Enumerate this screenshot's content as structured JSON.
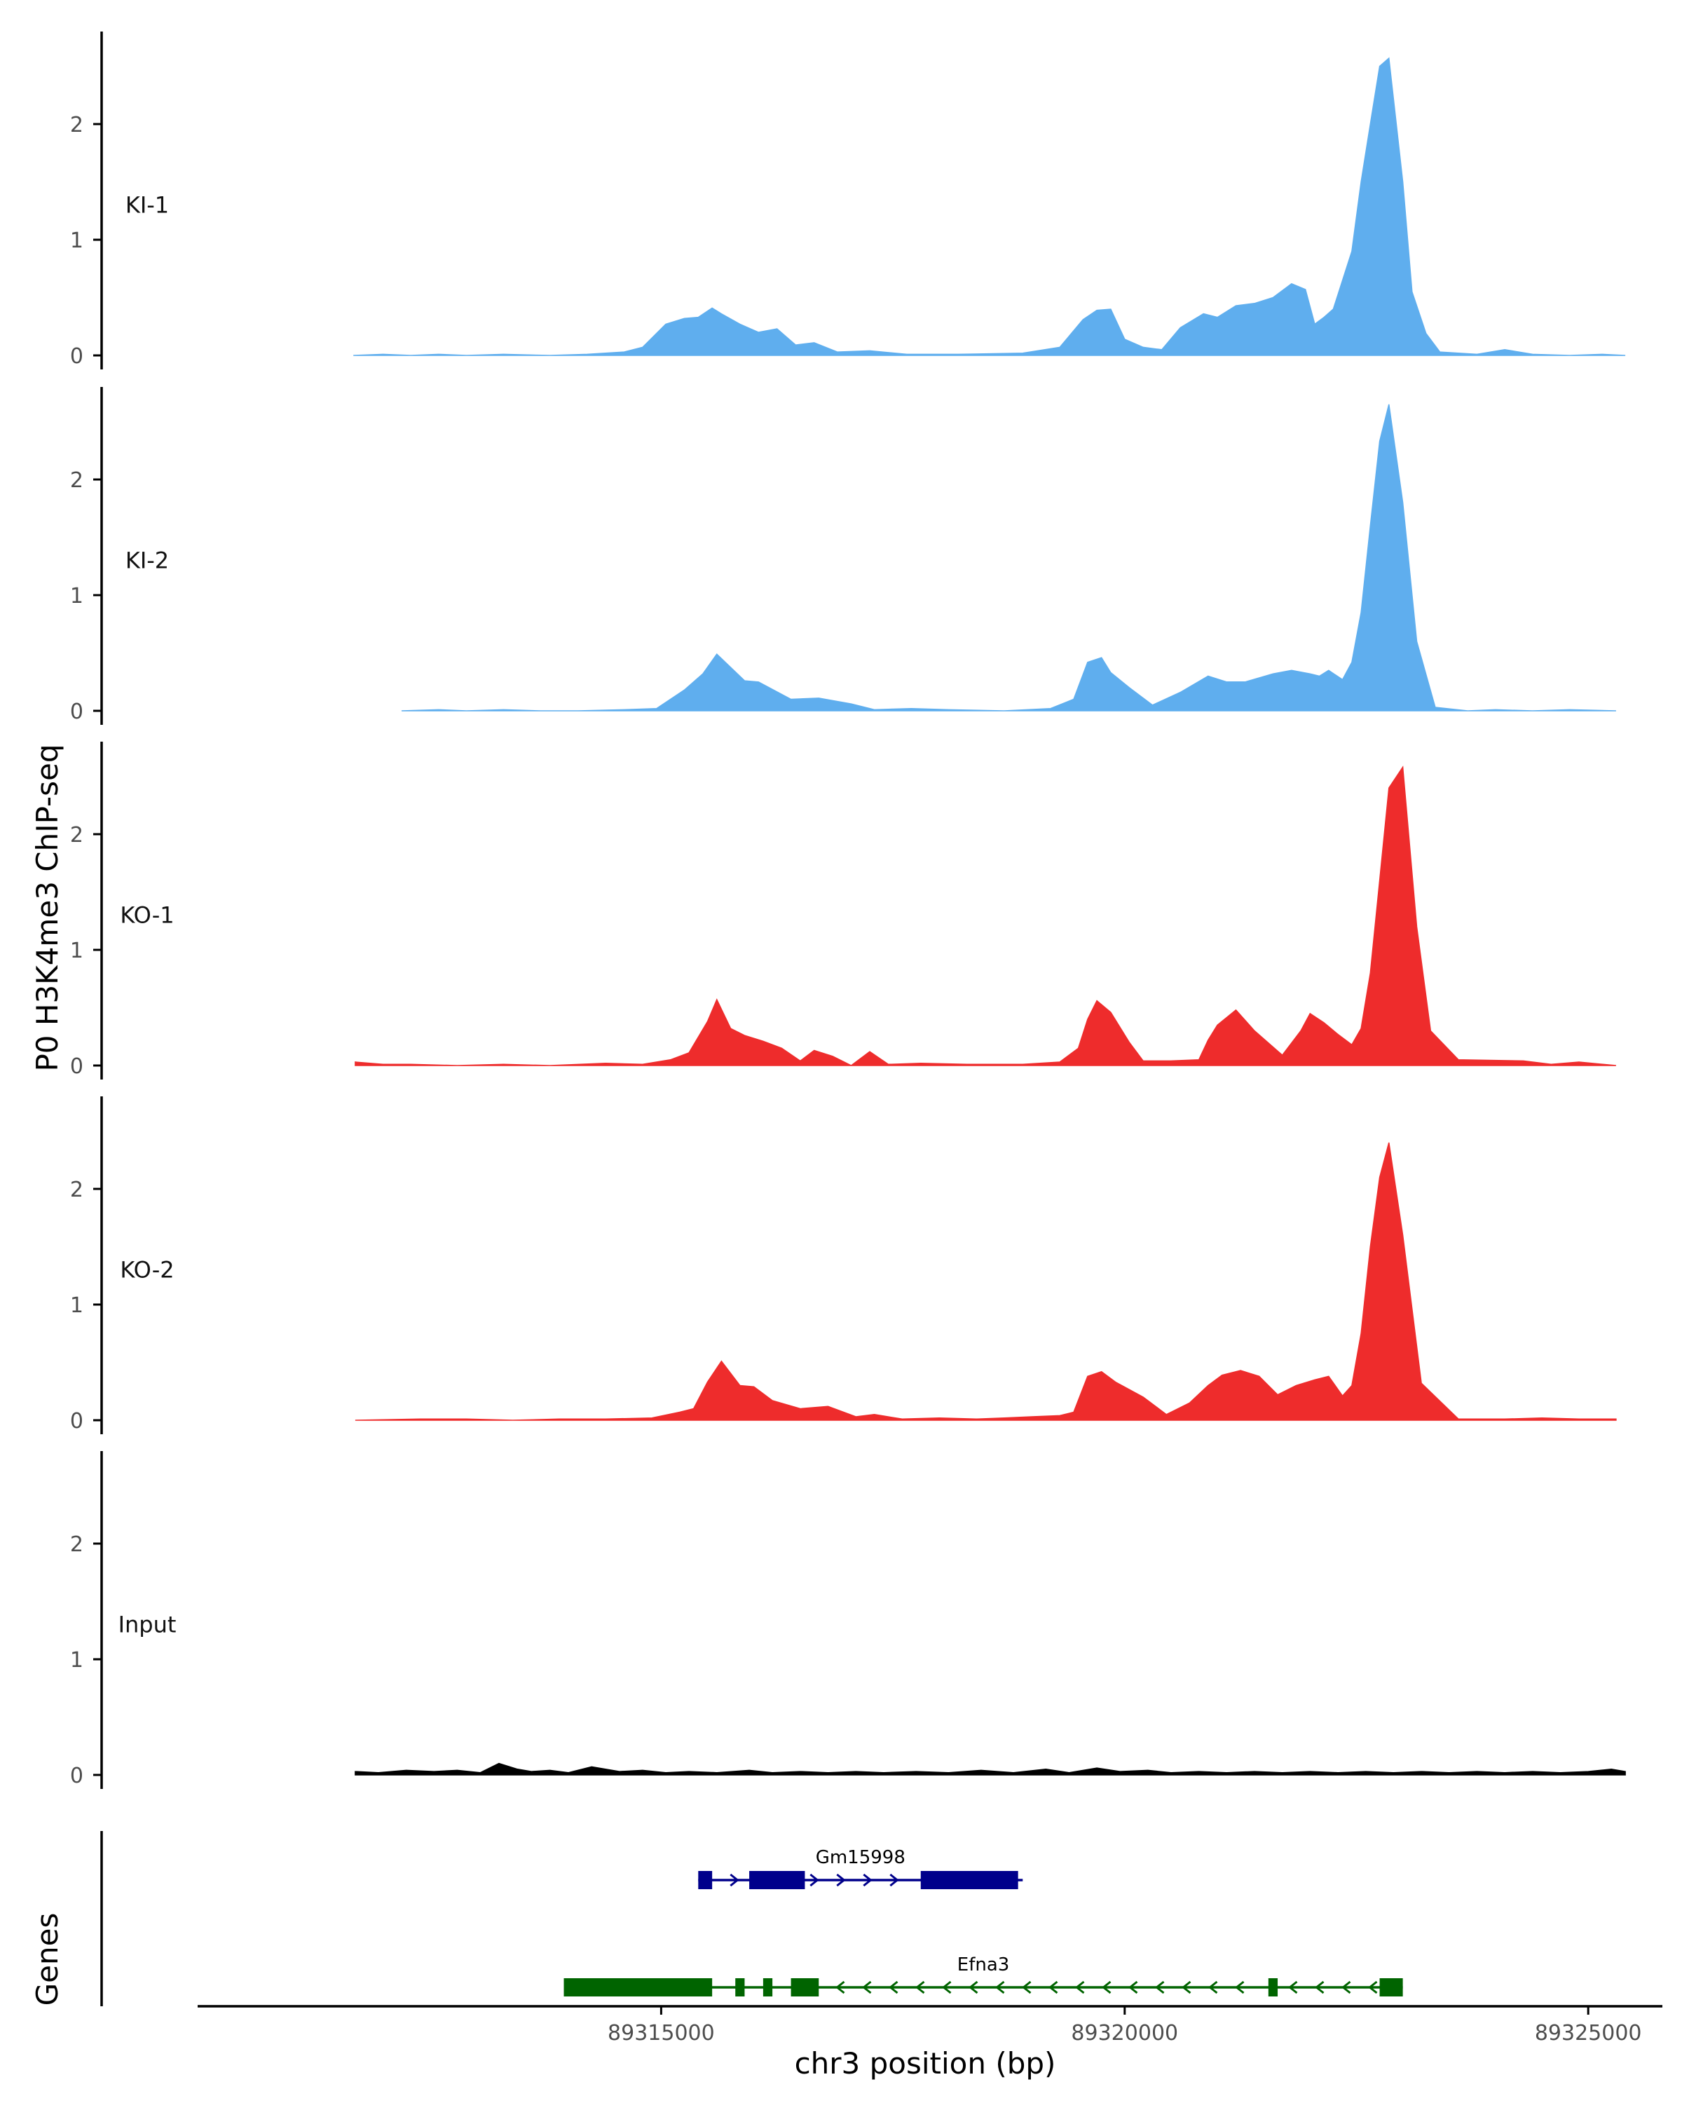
{
  "chart_data": {
    "type": "area",
    "title": "",
    "ylabel": "P0 H3K4me3 ChIP-seq",
    "xlabel": "chr3 position (bp)",
    "xlim": [
      89310000,
      89325800
    ],
    "ylim": [
      0,
      2.8
    ],
    "y_ticks": [
      0,
      1,
      2
    ],
    "x_ticks": [
      89315000,
      89320000,
      89325000
    ],
    "x_tick_labels": [
      "89315000",
      "89320000",
      "89325000"
    ],
    "genes_label": "Genes",
    "tracks": [
      {
        "name": "KI-1",
        "color": "#5faeee",
        "x": [
          89311680,
          89312000,
          89312300,
          89312600,
          89312900,
          89313300,
          89313800,
          89314200,
          89314600,
          89314800,
          89315050,
          89315250,
          89315400,
          89315550,
          89315650,
          89315850,
          89316050,
          89316250,
          89316450,
          89316650,
          89316900,
          89317250,
          89317650,
          89318200,
          89318900,
          89319300,
          89319550,
          89319700,
          89319850,
          89320000,
          89320200,
          89320400,
          89320600,
          89320850,
          89321000,
          89321200,
          89321400,
          89321600,
          89321800,
          89321950,
          89322050,
          89322150,
          89322250,
          89322450,
          89322550,
          89322650,
          89322750,
          89322850,
          89323000,
          89323100,
          89323250,
          89323400,
          89323800,
          89324100,
          89324400,
          89324800,
          89325150,
          89325400
        ],
        "values": [
          0,
          0.01,
          0,
          0.01,
          0,
          0.01,
          0,
          0.01,
          0.03,
          0.07,
          0.27,
          0.32,
          0.33,
          0.41,
          0.36,
          0.27,
          0.2,
          0.23,
          0.09,
          0.11,
          0.03,
          0.04,
          0.01,
          0.01,
          0.02,
          0.07,
          0.31,
          0.39,
          0.4,
          0.14,
          0.07,
          0.05,
          0.24,
          0.36,
          0.33,
          0.43,
          0.45,
          0.5,
          0.62,
          0.57,
          0.27,
          0.33,
          0.4,
          0.9,
          1.5,
          2.0,
          2.5,
          2.57,
          1.5,
          0.55,
          0.19,
          0.03,
          0.01,
          0.05,
          0.01,
          0,
          0.01,
          0
        ],
        "label_y": 1.3
      },
      {
        "name": "KI-2",
        "color": "#5faeee",
        "x": [
          89312200,
          89312600,
          89312900,
          89313300,
          89313700,
          89314100,
          89314600,
          89314950,
          89315250,
          89315450,
          89315600,
          89315900,
          89316050,
          89316400,
          89316700,
          89317050,
          89317300,
          89317700,
          89318100,
          89318700,
          89319200,
          89319450,
          89319600,
          89319750,
          89319850,
          89320050,
          89320300,
          89320600,
          89320900,
          89321100,
          89321300,
          89321600,
          89321800,
          89322000,
          89322100,
          89322200,
          89322350,
          89322450,
          89322550,
          89322650,
          89322750,
          89322850,
          89323000,
          89323150,
          89323350,
          89323700,
          89324000,
          89324400,
          89324800,
          89325300
        ],
        "values": [
          0,
          0.01,
          0,
          0.01,
          0,
          0,
          0.01,
          0.02,
          0.18,
          0.32,
          0.49,
          0.26,
          0.25,
          0.1,
          0.11,
          0.06,
          0.01,
          0.02,
          0.01,
          0,
          0.02,
          0.1,
          0.42,
          0.46,
          0.33,
          0.2,
          0.05,
          0.16,
          0.3,
          0.25,
          0.25,
          0.32,
          0.35,
          0.32,
          0.3,
          0.35,
          0.27,
          0.42,
          0.85,
          1.6,
          2.33,
          2.65,
          1.8,
          0.6,
          0.03,
          0,
          0.01,
          0,
          0.01,
          0
        ],
        "label_y": 1.3
      },
      {
        "name": "KO-1",
        "color": "#ee2c2c",
        "x": [
          89311700,
          89312000,
          89312300,
          89312800,
          89313300,
          89313800,
          89314400,
          89314800,
          89315100,
          89315300,
          89315500,
          89315600,
          89315750,
          89315900,
          89316100,
          89316300,
          89316500,
          89316650,
          89316850,
          89317050,
          89317250,
          89317450,
          89317800,
          89318300,
          89318900,
          89319300,
          89319500,
          89319600,
          89319700,
          89319850,
          89320050,
          89320200,
          89320500,
          89320800,
          89320900,
          89321000,
          89321200,
          89321400,
          89321700,
          89321900,
          89322000,
          89322150,
          89322300,
          89322450,
          89322550,
          89322650,
          89322750,
          89322850,
          89323000,
          89323150,
          89323300,
          89323600,
          89324300,
          89324600,
          89324900,
          89325300
        ],
        "values": [
          0.03,
          0.01,
          0.01,
          0,
          0.01,
          0,
          0.02,
          0.01,
          0.05,
          0.11,
          0.38,
          0.57,
          0.32,
          0.26,
          0.21,
          0.15,
          0.04,
          0.13,
          0.08,
          0,
          0.12,
          0.01,
          0.02,
          0.01,
          0.01,
          0.03,
          0.15,
          0.4,
          0.56,
          0.46,
          0.2,
          0.04,
          0.04,
          0.05,
          0.22,
          0.35,
          0.48,
          0.3,
          0.09,
          0.3,
          0.45,
          0.37,
          0.27,
          0.18,
          0.32,
          0.8,
          1.6,
          2.4,
          2.58,
          1.2,
          0.3,
          0.05,
          0.04,
          0.01,
          0.03,
          0
        ],
        "label_y": 1.3
      },
      {
        "name": "KO-2",
        "color": "#ee2c2c",
        "x": [
          89311700,
          89312400,
          89312900,
          89313400,
          89313900,
          89314400,
          89314900,
          89315200,
          89315350,
          89315500,
          89315650,
          89315850,
          89316000,
          89316200,
          89316500,
          89316800,
          89317100,
          89317300,
          89317600,
          89318000,
          89318400,
          89318700,
          89319000,
          89319300,
          89319450,
          89319600,
          89319750,
          89319900,
          89320200,
          89320450,
          89320700,
          89320900,
          89321050,
          89321250,
          89321450,
          89321650,
          89321850,
          89322050,
          89322200,
          89322350,
          89322450,
          89322550,
          89322650,
          89322750,
          89322850,
          89323000,
          89323200,
          89323600,
          89324100,
          89324500,
          89324900,
          89325300
        ],
        "values": [
          0,
          0.01,
          0.01,
          0,
          0.01,
          0.01,
          0.02,
          0.07,
          0.1,
          0.33,
          0.51,
          0.3,
          0.29,
          0.17,
          0.1,
          0.12,
          0.03,
          0.05,
          0.01,
          0.02,
          0.01,
          0.02,
          0.03,
          0.04,
          0.07,
          0.38,
          0.42,
          0.33,
          0.2,
          0.05,
          0.15,
          0.3,
          0.39,
          0.43,
          0.38,
          0.22,
          0.3,
          0.35,
          0.38,
          0.21,
          0.3,
          0.75,
          1.5,
          2.1,
          2.4,
          1.6,
          0.32,
          0.01,
          0.01,
          0.02,
          0.01,
          0.01
        ],
        "label_y": 1.3
      },
      {
        "name": "Input",
        "color": "#000000",
        "x": [
          89311700,
          89311950,
          89312250,
          89312550,
          89312800,
          89313050,
          89313250,
          89313450,
          89313600,
          89313800,
          89314000,
          89314250,
          89314550,
          89314800,
          89315050,
          89315300,
          89315600,
          89315950,
          89316200,
          89316500,
          89316800,
          89317100,
          89317400,
          89317750,
          89318100,
          89318450,
          89318800,
          89319150,
          89319400,
          89319700,
          89319950,
          89320250,
          89320500,
          89320800,
          89321100,
          89321400,
          89321700,
          89322000,
          89322300,
          89322600,
          89322900,
          89323200,
          89323500,
          89323800,
          89324100,
          89324400,
          89324700,
          89325000,
          89325250,
          89325400
        ],
        "values": [
          0.03,
          0.02,
          0.04,
          0.03,
          0.04,
          0.02,
          0.1,
          0.05,
          0.03,
          0.04,
          0.02,
          0.07,
          0.03,
          0.04,
          0.02,
          0.03,
          0.02,
          0.04,
          0.02,
          0.03,
          0.02,
          0.03,
          0.02,
          0.03,
          0.02,
          0.04,
          0.02,
          0.05,
          0.02,
          0.06,
          0.03,
          0.04,
          0.02,
          0.03,
          0.02,
          0.03,
          0.02,
          0.03,
          0.02,
          0.03,
          0.02,
          0.03,
          0.02,
          0.03,
          0.02,
          0.03,
          0.02,
          0.03,
          0.05,
          0.03
        ],
        "label_y": 1.3
      }
    ],
    "genes": [
      {
        "name": "Gm15998",
        "color": "#00008b",
        "strand": "+",
        "start": 89315400,
        "end": 89318900,
        "exons": [
          [
            89315400,
            89315550
          ],
          [
            89315950,
            89316550
          ],
          [
            89317800,
            89318850
          ]
        ]
      },
      {
        "name": "Efna3",
        "color": "#006400",
        "strand": "-",
        "start": 89313950,
        "end": 89323000,
        "exons": [
          [
            89313950,
            89315550
          ],
          [
            89315800,
            89315900
          ],
          [
            89316100,
            89316200
          ],
          [
            89316400,
            89316700
          ],
          [
            89321550,
            89321650
          ],
          [
            89322750,
            89323000
          ]
        ]
      }
    ]
  }
}
